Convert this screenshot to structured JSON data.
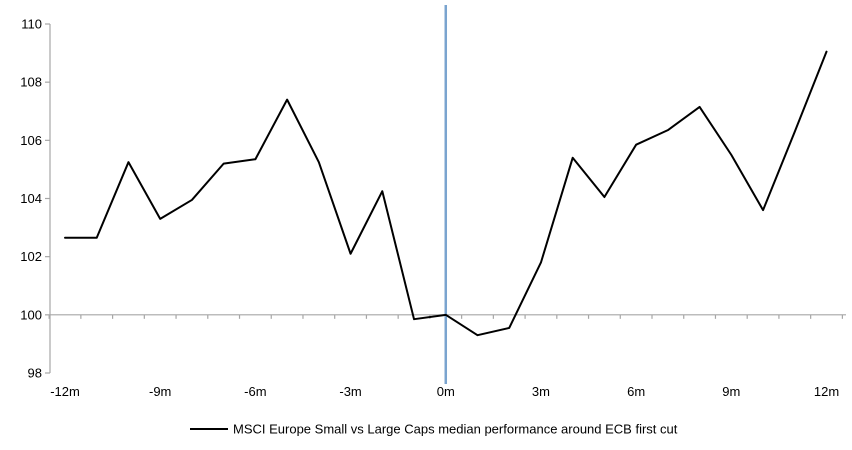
{
  "chart_data": {
    "type": "line",
    "title": "",
    "legend": "MSCI Europe Small vs Large Caps median performance around ECB first cut",
    "xlabel": "",
    "ylabel": "",
    "x": [
      -12,
      -11,
      -10,
      -9,
      -8,
      -7,
      -6,
      -5,
      -4,
      -3,
      -2,
      -1,
      0,
      1,
      2,
      3,
      4,
      5,
      6,
      7,
      8,
      9,
      10,
      11,
      12
    ],
    "series": [
      {
        "name": "MSCI Europe Small vs Large Caps median performance around ECB first cut",
        "values": [
          102.65,
          102.65,
          105.25,
          103.3,
          103.95,
          105.2,
          105.35,
          107.4,
          105.25,
          102.1,
          104.25,
          99.85,
          100.0,
          99.3,
          99.55,
          101.8,
          105.4,
          104.05,
          105.85,
          106.35,
          107.15,
          105.5,
          103.6,
          106.3,
          109.05
        ]
      }
    ],
    "xtick_months": [
      -12,
      -9,
      -6,
      -3,
      0,
      3,
      6,
      9,
      12
    ],
    "xtick_labels": [
      "-12m",
      "-9m",
      "-6m",
      "-3m",
      "0m",
      "3m",
      "6m",
      "9m",
      "12m"
    ],
    "ytick_values": [
      110,
      108,
      106,
      104,
      102,
      100,
      98
    ],
    "ytick_labels": [
      "110",
      "108",
      "106",
      "104",
      "102",
      "100",
      "98"
    ],
    "ylim": [
      98,
      110
    ],
    "xlim": [
      -12,
      12
    ],
    "grid": "off",
    "legend_position": "bottom-center",
    "baseline_value": 100,
    "event_line": {
      "x_month": 0
    },
    "colors": {
      "series": "#000000",
      "axis": "#a6a6a6",
      "event_line": "#7aa4cf",
      "text": "#000000",
      "background": "#ffffff"
    }
  }
}
